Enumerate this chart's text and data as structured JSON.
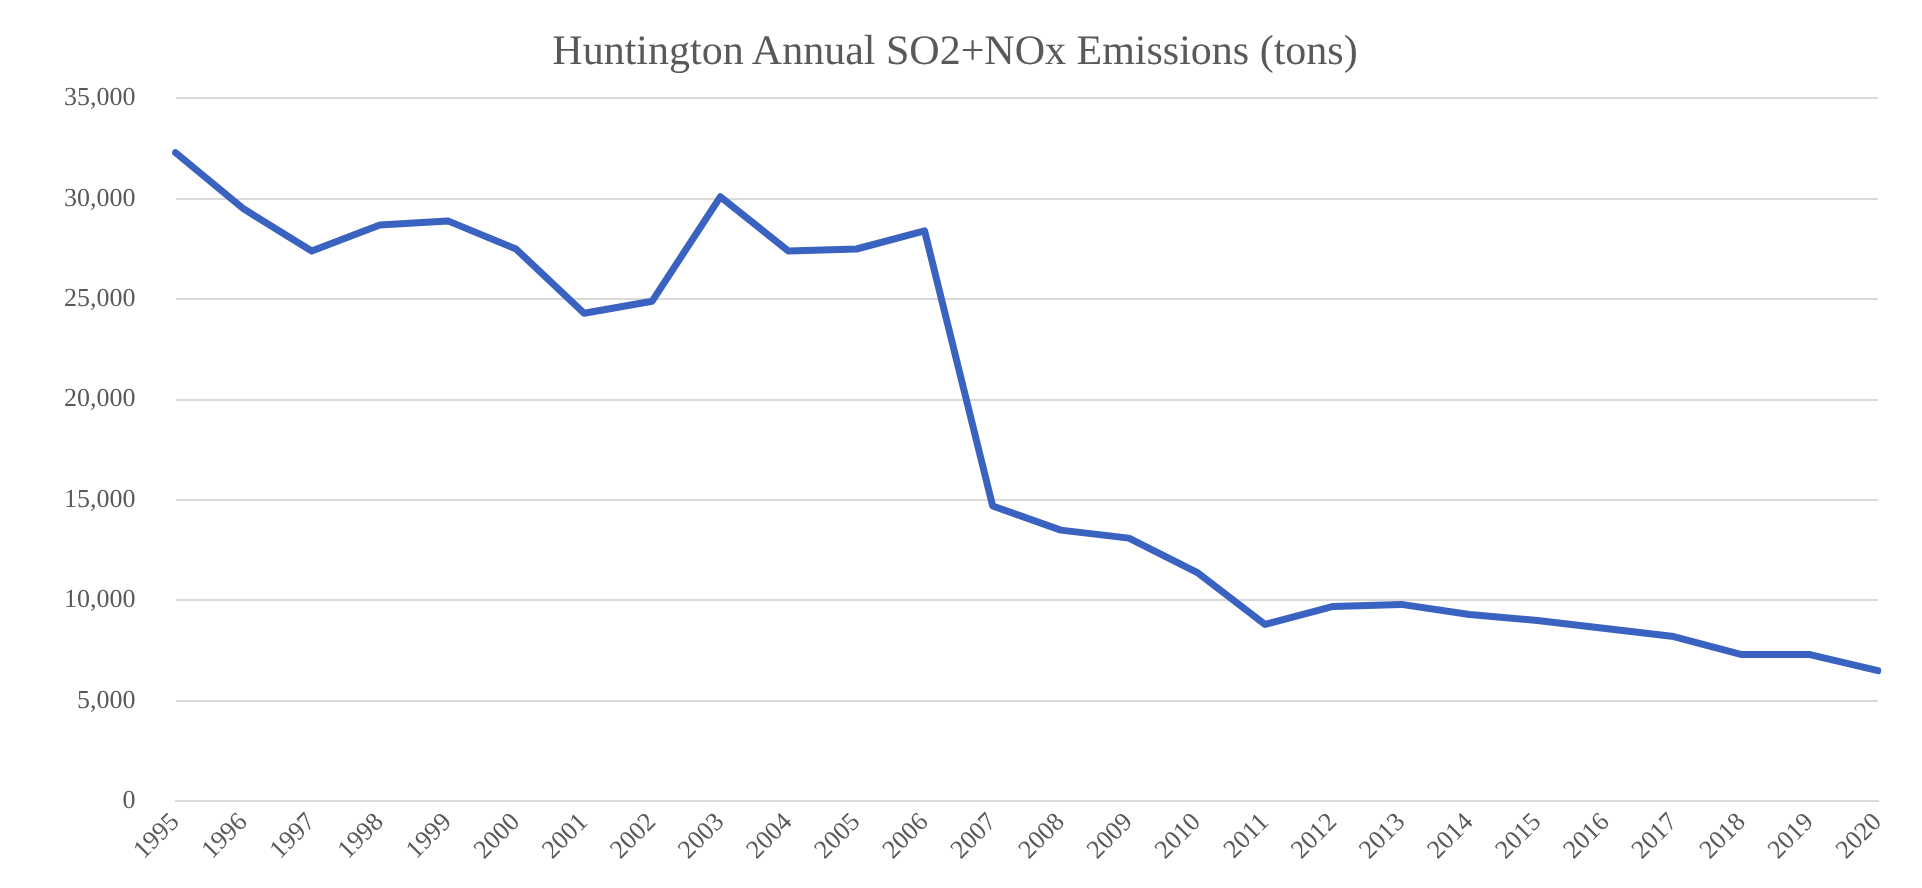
{
  "chart_data": {
    "type": "line",
    "title": "Huntington Annual SO2+NOx Emissions (tons)",
    "categories": [
      "1995",
      "1996",
      "1997",
      "1998",
      "1999",
      "2000",
      "2001",
      "2002",
      "2003",
      "2004",
      "2005",
      "2006",
      "2007",
      "2008",
      "2009",
      "2010",
      "2011",
      "2012",
      "2013",
      "2014",
      "2015",
      "2016",
      "2017",
      "2018",
      "2019",
      "2020"
    ],
    "series": [
      {
        "color": "#3a62c0",
        "values": [
          32300,
          29500,
          27400,
          28700,
          28900,
          27500,
          24300,
          24900,
          30100,
          27400,
          27500,
          28400,
          14700,
          13500,
          13100,
          11400,
          8800,
          9700,
          9800,
          9300,
          9000,
          8600,
          8200,
          7300,
          7300,
          6500
        ]
      }
    ],
    "ylim": [
      0,
      35000
    ],
    "yticks": [
      {
        "value": 0,
        "label": "0"
      },
      {
        "value": 5000,
        "label": "5,000"
      },
      {
        "value": 10000,
        "label": "10,000"
      },
      {
        "value": 15000,
        "label": "15,000"
      },
      {
        "value": 20000,
        "label": "20,000"
      },
      {
        "value": 25000,
        "label": "25,000"
      },
      {
        "value": 30000,
        "label": "30,000"
      },
      {
        "value": 35000,
        "label": "35,000"
      }
    ],
    "grid": "y",
    "legend": false,
    "marker": "none",
    "line_style": "solid"
  }
}
